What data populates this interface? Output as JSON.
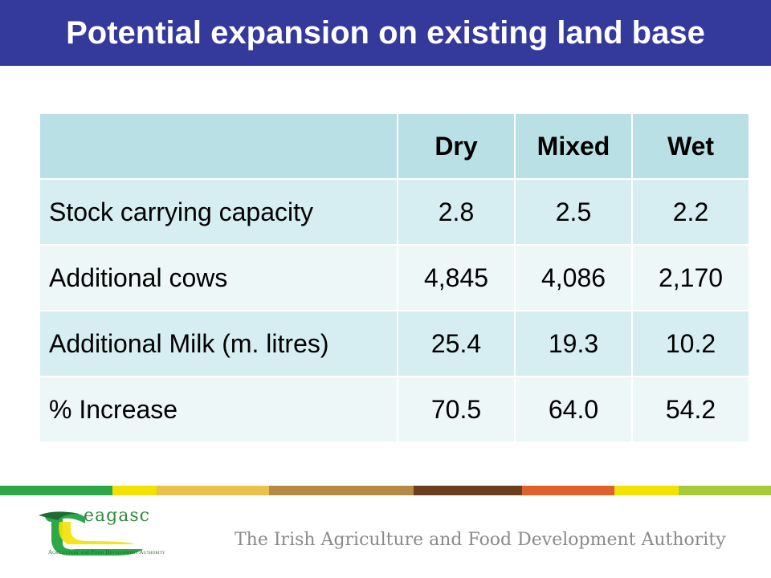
{
  "slide": {
    "title": "Potential expansion on existing land base"
  },
  "table": {
    "columns": [
      "",
      "Dry",
      "Mixed",
      "Wet"
    ],
    "rows": [
      {
        "label": "Stock carrying capacity",
        "values": [
          "2.8",
          "2.5",
          "2.2"
        ]
      },
      {
        "label": "Additional cows",
        "values": [
          "4,845",
          "4,086",
          "2,170"
        ]
      },
      {
        "label": "Additional Milk (m. litres)",
        "values": [
          "25.4",
          "19.3",
          "10.2"
        ]
      },
      {
        "label": "% Increase",
        "values": [
          "70.5",
          "64.0",
          "54.2"
        ]
      }
    ]
  },
  "footer": {
    "logo_word": "eagasc",
    "logo_tagline": "Agriculture and Food Development Authority",
    "org_line": "The Irish Agriculture and Food Development Authority"
  },
  "colors": {
    "title_bar": "#343a9c",
    "header_cell": "#b8e0e5",
    "row_dark": "#d6eef1",
    "row_light": "#edf7f8",
    "stripe": [
      "#2aa84a",
      "#f2e200",
      "#e8c24a",
      "#b58a45",
      "#6b3f1e",
      "#e0602a",
      "#f2e200",
      "#a7c93a"
    ]
  }
}
